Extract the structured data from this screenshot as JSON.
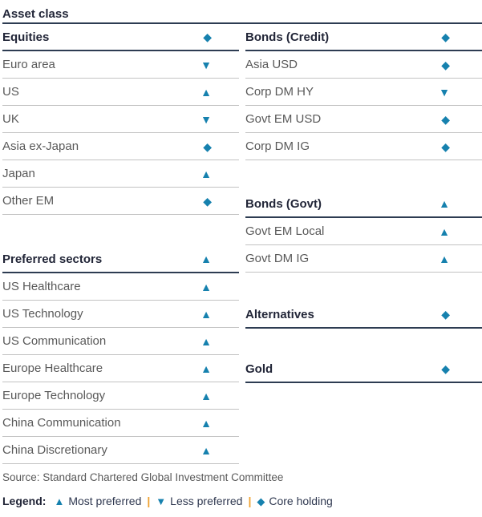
{
  "title": "Asset class",
  "colors": {
    "accent_icon": "#1681ae",
    "header_text": "#222638",
    "header_underline": "#2d3c52",
    "row_rule": "#c2c2c2",
    "row_text": "#595959",
    "legend_separator": "#efa02f"
  },
  "icon_glyphs": {
    "most-preferred": "▲",
    "less-preferred": "▼",
    "core-holding": "◆"
  },
  "columns": {
    "left": {
      "sections": [
        {
          "header": {
            "label": "Equities",
            "icon": "core-holding"
          },
          "rows": [
            {
              "label": "Euro area",
              "icon": "less-preferred"
            },
            {
              "label": "US",
              "icon": "most-preferred"
            },
            {
              "label": "UK",
              "icon": "less-preferred"
            },
            {
              "label": "Asia ex-Japan",
              "icon": "core-holding"
            },
            {
              "label": "Japan",
              "icon": "most-preferred"
            },
            {
              "label": "Other EM",
              "icon": "core-holding"
            }
          ]
        },
        {
          "header": {
            "label": "Preferred sectors",
            "icon": "most-preferred"
          },
          "rows": [
            {
              "label": "US Healthcare",
              "icon": "most-preferred"
            },
            {
              "label": "US Technology",
              "icon": "most-preferred"
            },
            {
              "label": "US Communication",
              "icon": "most-preferred"
            },
            {
              "label": "Europe Healthcare",
              "icon": "most-preferred"
            },
            {
              "label": "Europe Technology",
              "icon": "most-preferred"
            },
            {
              "label": "China Communication",
              "icon": "most-preferred"
            },
            {
              "label": "China Discretionary",
              "icon": "most-preferred"
            }
          ]
        }
      ]
    },
    "right": {
      "sections": [
        {
          "header": {
            "label": "Bonds (Credit)",
            "icon": "core-holding"
          },
          "rows": [
            {
              "label": "Asia USD",
              "icon": "core-holding"
            },
            {
              "label": "Corp DM HY",
              "icon": "less-preferred"
            },
            {
              "label": "Govt EM USD",
              "icon": "core-holding"
            },
            {
              "label": "Corp DM IG",
              "icon": "core-holding"
            }
          ]
        },
        {
          "header": {
            "label": "Bonds (Govt)",
            "icon": "most-preferred"
          },
          "rows": [
            {
              "label": "Govt EM Local",
              "icon": "most-preferred"
            },
            {
              "label": "Govt DM IG",
              "icon": "most-preferred"
            }
          ]
        },
        {
          "header": {
            "label": "Alternatives",
            "icon": "core-holding"
          },
          "rows": []
        },
        {
          "header": {
            "label": "Gold",
            "icon": "core-holding"
          },
          "rows": []
        }
      ]
    }
  },
  "footer": {
    "source": "Source: Standard Chartered Global Investment Committee",
    "legend": {
      "label": "Legend:",
      "separator": "|",
      "items": [
        {
          "icon": "most-preferred",
          "text": "Most preferred"
        },
        {
          "icon": "less-preferred",
          "text": "Less preferred"
        },
        {
          "icon": "core-holding",
          "text": "Core holding"
        }
      ]
    }
  }
}
